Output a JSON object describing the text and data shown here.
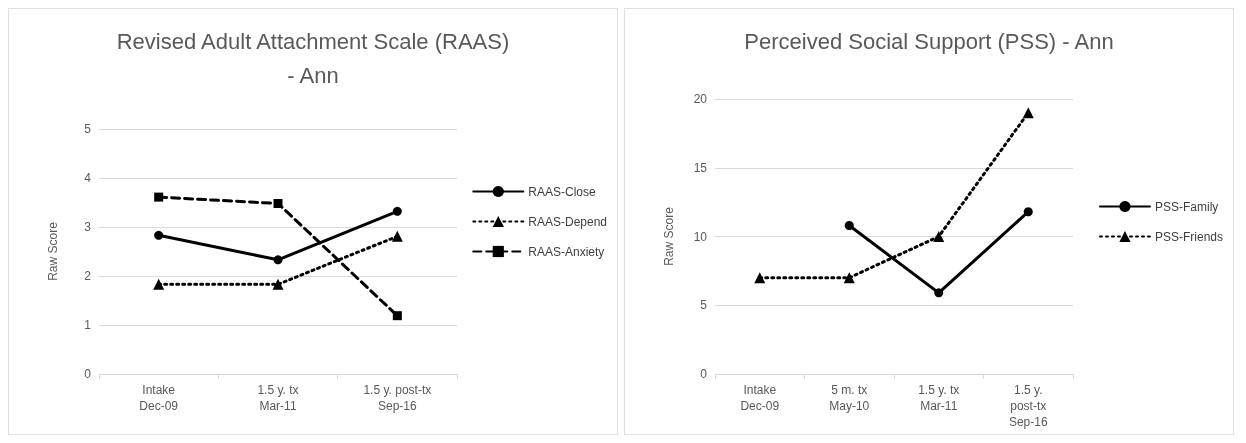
{
  "chart_data": [
    {
      "type": "line",
      "title": "Revised Adult Attachment Scale (RAAS)\n- Ann",
      "ylabel": "Raw Score",
      "categories": [
        "Intake\nDec-09",
        "1.5 y. tx\nMar-11",
        "1.5 y. post-tx\nSep-16"
      ],
      "ylim": [
        0,
        5
      ],
      "yticks": [
        0,
        1,
        2,
        3,
        4,
        5
      ],
      "grid": "y",
      "legend": "right",
      "series": [
        {
          "name": "RAAS-Close",
          "color": "#000000",
          "marker": "circle",
          "line_style": "solid",
          "values": [
            2.83,
            2.33,
            3.32
          ]
        },
        {
          "name": "RAAS-Depend",
          "color": "#000000",
          "marker": "triangle",
          "line_style": "dotted",
          "values": [
            1.83,
            1.83,
            2.81
          ]
        },
        {
          "name": "RAAS-Anxiety",
          "color": "#000000",
          "marker": "square",
          "line_style": "dashed",
          "values": [
            3.61,
            3.48,
            1.19
          ]
        }
      ]
    },
    {
      "type": "line",
      "title": "Perceived Social Support (PSS) - Ann",
      "ylabel": "Raw Score",
      "categories": [
        "Intake\nDec-09",
        "5 m. tx\nMay-10",
        "1.5 y. tx\nMar-11",
        "1.5 y.\npost-tx\nSep-16"
      ],
      "ylim": [
        0,
        20
      ],
      "yticks": [
        0,
        5,
        10,
        15,
        20
      ],
      "grid": "y",
      "legend": "right",
      "series": [
        {
          "name": "PSS-Family",
          "color": "#000000",
          "marker": "circle",
          "line_style": "solid",
          "values": [
            null,
            10.8,
            5.9,
            11.8
          ]
        },
        {
          "name": "PSS-Friends",
          "color": "#000000",
          "marker": "triangle",
          "line_style": "dotted",
          "values": [
            7,
            7,
            10,
            19
          ]
        }
      ]
    }
  ]
}
